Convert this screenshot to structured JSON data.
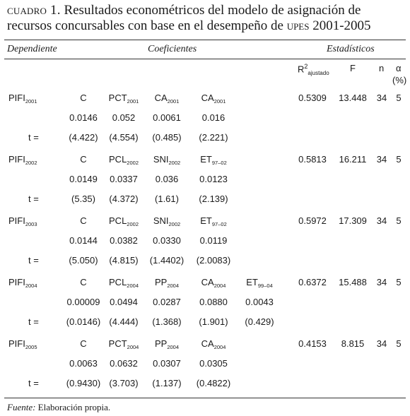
{
  "caption": {
    "lead": "cuadro 1.",
    "text_a": " Resultados econométricos del modelo de asignación de recursos concursables con base en el desempeño de ",
    "acronym": "upes",
    "text_b": " 2001-2005"
  },
  "headers": {
    "dependiente": "Dependiente",
    "coeficientes": "Coeficientes",
    "estadisticos": "Estadísticos",
    "r2": "R",
    "r2_sup": "2",
    "r2_sub": "ajustado",
    "f": "F",
    "n": "n",
    "alpha": "α",
    "alpha_unit": "(%)"
  },
  "row_labels": {
    "t": "t ="
  },
  "blocks": [
    {
      "dep": {
        "base": "PIFI",
        "sub": "2001"
      },
      "vars": [
        {
          "base": "C",
          "sub": ""
        },
        {
          "base": "PCT",
          "sub": "2001"
        },
        {
          "base": "CA",
          "sub": "2001"
        },
        {
          "base": "CA",
          "sub": "2001"
        }
      ],
      "coefs": [
        "0.0146",
        "0.052",
        "0.0061",
        "0.016"
      ],
      "tvals": [
        "(4.422)",
        "(4.554)",
        "(0.485)",
        "(2.221)"
      ],
      "stats": {
        "r2": "0.5309",
        "f": "13.448",
        "n": "34",
        "alpha": "5"
      }
    },
    {
      "dep": {
        "base": "PIFI",
        "sub": "2002"
      },
      "vars": [
        {
          "base": "C",
          "sub": ""
        },
        {
          "base": "PCL",
          "sub": "2002"
        },
        {
          "base": "SNI",
          "sub": "2002"
        },
        {
          "base": "ET",
          "sub": "97–02"
        }
      ],
      "coefs": [
        "0.0149",
        "0.0337",
        "0.036",
        "0.0123"
      ],
      "tvals": [
        "(5.35)",
        "(4.372)",
        "(1.61)",
        "(2.139)"
      ],
      "stats": {
        "r2": "0.5813",
        "f": "16.211",
        "n": "34",
        "alpha": "5"
      }
    },
    {
      "dep": {
        "base": "PIFI",
        "sub": "2003"
      },
      "vars": [
        {
          "base": "C",
          "sub": ""
        },
        {
          "base": "PCL",
          "sub": "2002"
        },
        {
          "base": "SNI",
          "sub": "2002"
        },
        {
          "base": "ET",
          "sub": "97–02"
        }
      ],
      "coefs": [
        "0.0144",
        "0.0382",
        "0.0330",
        "0.0119"
      ],
      "tvals": [
        "(5.050)",
        "(4.815)",
        "(1.4402)",
        "(2.0083)"
      ],
      "stats": {
        "r2": "0.5972",
        "f": "17.309",
        "n": "34",
        "alpha": "5"
      }
    },
    {
      "dep": {
        "base": "PIFI",
        "sub": "2004"
      },
      "vars": [
        {
          "base": "C",
          "sub": ""
        },
        {
          "base": "PCL",
          "sub": "2004"
        },
        {
          "base": "PP",
          "sub": "2004"
        },
        {
          "base": "CA",
          "sub": "2004"
        },
        {
          "base": "ET",
          "sub": "99–04"
        }
      ],
      "coefs": [
        "0.00009",
        "0.0494",
        "0.0287",
        "0.0880",
        "0.0043"
      ],
      "tvals": [
        "(0.0146)",
        "(4.444)",
        "(1.368)",
        "(1.901)",
        "(0.429)"
      ],
      "stats": {
        "r2": "0.6372",
        "f": "15.488",
        "n": "34",
        "alpha": "5"
      }
    },
    {
      "dep": {
        "base": "PIFI",
        "sub": "2005"
      },
      "vars": [
        {
          "base": "C",
          "sub": ""
        },
        {
          "base": "PCT",
          "sub": "2004"
        },
        {
          "base": "PP",
          "sub": "2004"
        },
        {
          "base": "CA",
          "sub": "2004"
        }
      ],
      "coefs": [
        "0.0063",
        "0.0632",
        "0.0307",
        "0.0305"
      ],
      "tvals": [
        "(0.9430)",
        "(3.703)",
        "(1.137)",
        "(0.4822)"
      ],
      "stats": {
        "r2": "0.4153",
        "f": "8.815",
        "n": "34",
        "alpha": "5"
      }
    }
  ],
  "source": {
    "label": "Fuente:",
    "text": " Elaboración propia."
  }
}
